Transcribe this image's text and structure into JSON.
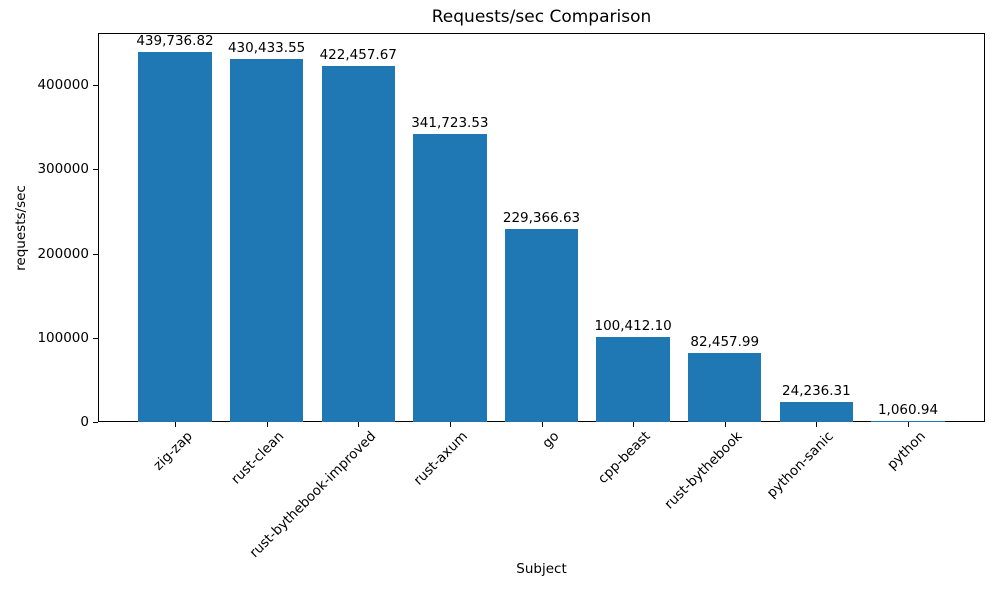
{
  "chart_data": {
    "type": "bar",
    "title": "Requests/sec Comparison",
    "xlabel": "Subject",
    "ylabel": "requests/sec",
    "categories": [
      "zig-zap",
      "rust-clean",
      "rust-bythebook-improved",
      "rust-axum",
      "go",
      "cpp-beast",
      "rust-bythebook",
      "python-sanic",
      "python"
    ],
    "values": [
      439736.82,
      430433.55,
      422457.67,
      341723.53,
      229366.63,
      100412.1,
      82457.99,
      24236.31,
      1060.94
    ],
    "value_labels": [
      "439,736.82",
      "430,433.55",
      "422,457.67",
      "341,723.53",
      "229,366.63",
      "100,412.10",
      "82,457.99",
      "24,236.31",
      "1,060.94"
    ],
    "bar_color": "#1f77b4",
    "ylim": [
      0,
      461724
    ],
    "xlim": [
      -0.84,
      8.84
    ],
    "bar_width_units": 0.8,
    "yticks": [
      0,
      100000,
      200000,
      300000,
      400000
    ],
    "ytick_labels": [
      "0",
      "100000",
      "200000",
      "300000",
      "400000"
    ],
    "x_tick_rotation": 45,
    "grid": false,
    "legend": null
  }
}
